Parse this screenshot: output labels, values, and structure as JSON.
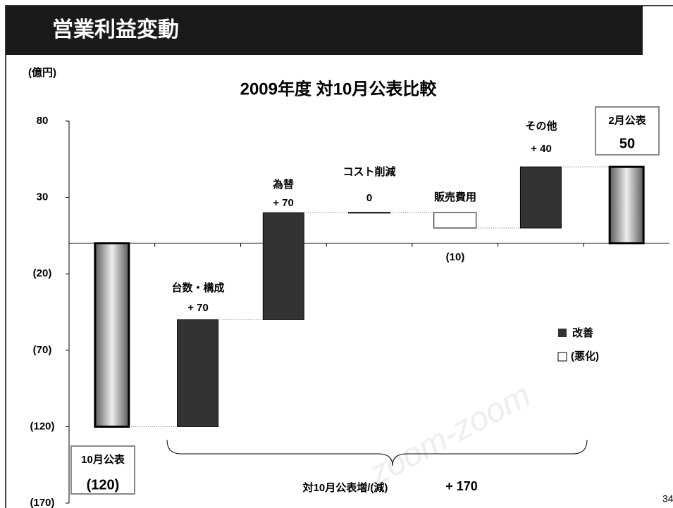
{
  "slide_title": "営業利益変動",
  "page_number": "34",
  "watermark": "zoom-zoom",
  "chart_data": {
    "type": "waterfall",
    "title": "2009年度 対10月公表比較",
    "y_label": "(億円)",
    "categories": [
      "10月公表",
      "台数・構成",
      "為替",
      "コスト削減",
      "販売費用",
      "その他",
      "2月公表"
    ],
    "values": [
      -120,
      70,
      70,
      0,
      -10,
      40,
      50
    ],
    "value_labels": [
      "(120)",
      "+ 70",
      "+ 70",
      "0",
      "(10)",
      "+ 40",
      "50"
    ],
    "total_indices": [
      0,
      6
    ],
    "colors": {
      "total": "#9a9a9a",
      "increase": "#333333",
      "decrease": "#ffffff"
    },
    "legend": {
      "increase": "改善",
      "decrease": "(悪化)",
      "position": "right"
    },
    "ylim": [
      -170,
      80
    ],
    "yticks": [
      {
        "value": -170,
        "label": "(170)"
      },
      {
        "value": -120,
        "label": "(120)"
      },
      {
        "value": -70,
        "label": "(70)"
      },
      {
        "value": -20,
        "label": "(20)"
      },
      30,
      80
    ],
    "annotation": {
      "text": "対10月公表増/(減)",
      "value": 170,
      "label": "+ 170"
    }
  }
}
